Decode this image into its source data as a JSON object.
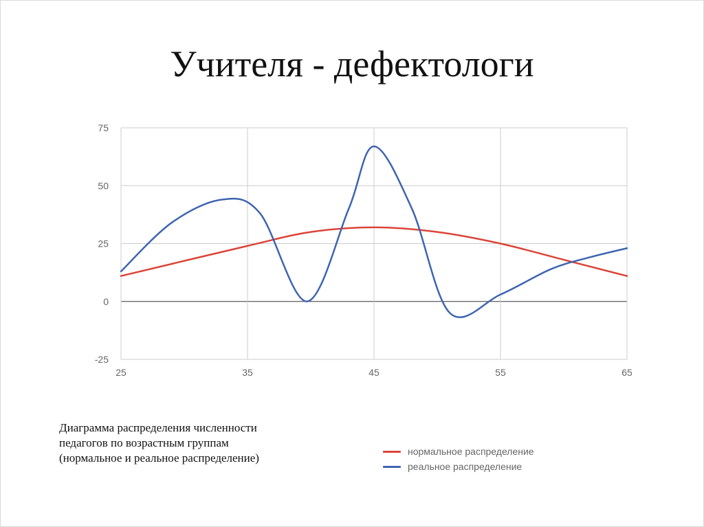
{
  "slide": {
    "title": "Учителя - дефектологи",
    "caption": [
      "Диаграмма распределения численности",
      "педагогов по возрастным группам",
      "(нормальное и реальное распределение)"
    ]
  },
  "chart_data": {
    "type": "line",
    "smooth": true,
    "xlim": [
      25,
      65
    ],
    "ylim": [
      -25,
      75
    ],
    "x_ticks": [
      25,
      35,
      45,
      55,
      65
    ],
    "y_ticks": [
      75,
      50,
      25,
      0,
      -25
    ],
    "grid": true,
    "legend_position": "bottom-right",
    "series": [
      {
        "name": "нормальное распределение",
        "color": "#db4437",
        "x": [
          25,
          35,
          40,
          45,
          50,
          55,
          60,
          65
        ],
        "values": [
          11,
          24,
          30,
          32,
          30,
          25,
          18,
          11
        ]
      },
      {
        "name": "реальное распределение",
        "color": "#3e64b1",
        "x": [
          25,
          29,
          33,
          36,
          39.7,
          43,
          45,
          48,
          51,
          55,
          59,
          62,
          65
        ],
        "values": [
          13,
          34,
          44,
          38,
          0,
          40,
          67,
          40,
          -5,
          3,
          14,
          19,
          23
        ]
      }
    ]
  }
}
